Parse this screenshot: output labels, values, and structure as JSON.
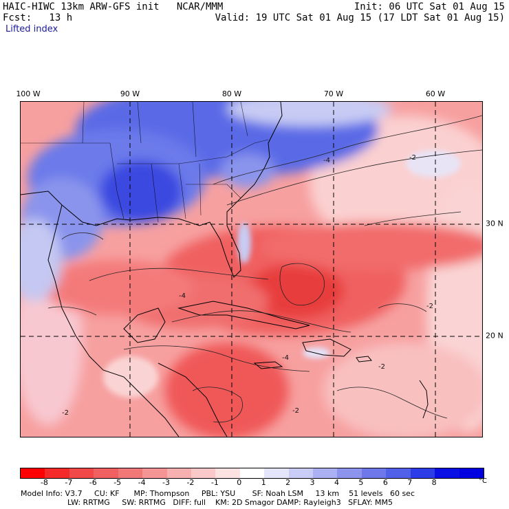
{
  "header": {
    "title": "HAIC-HIWC 13km ARW-GFS init   NCAR/MMM",
    "forecast": "Fcst:   13 h",
    "init": "Init: 06 UTC Sat 01 Aug 15",
    "valid": "Valid: 19 UTC Sat 01 Aug 15 (17 LDT Sat 01 Aug 15)",
    "field": "Lifted index"
  },
  "map": {
    "longitude_labels": [
      "100 W",
      "90 W",
      "80 W",
      "70 W",
      "60 W"
    ],
    "latitude_labels": [
      "30 N",
      "20 N"
    ],
    "contour_labels": [
      "-2",
      "-4",
      "-2",
      "-4",
      "-2",
      "-2",
      "-4",
      "-2"
    ],
    "colors": {
      "ocean_unstable": "#f05a5a",
      "land_stable": "#5a6ae8",
      "neutral": "#fce2e2",
      "gridline": "#000000"
    }
  },
  "colorbar": {
    "ticks": [
      "-8",
      "-7",
      "-6",
      "-5",
      "-4",
      "-3",
      "-2",
      "-1",
      "0",
      "1",
      "2",
      "3",
      "4",
      "5",
      "6",
      "7",
      "8"
    ],
    "unit": "°C",
    "colors": [
      "#ff0000",
      "#f42a2a",
      "#f04848",
      "#f06060",
      "#f27878",
      "#f49494",
      "#f7b0b0",
      "#fac8c8",
      "#fde2e2",
      "#ffffff",
      "#e4e4fa",
      "#c8ccf6",
      "#aab0f2",
      "#8c94ee",
      "#6e78ea",
      "#5060e8",
      "#2c3ce6",
      "#0a10e4",
      "#0000e0"
    ]
  },
  "footer": {
    "line1": "Model Info: V3.7     CU: KF      MP: Thompson     PBL: YSU       SF: Noah LSM     13 km    51 levels   60 sec",
    "line2": "LW: RRTMG     SW: RRTMG   DIFF: full    KM: 2D Smagor DAMP: Rayleigh3   SFLAY: MM5"
  }
}
